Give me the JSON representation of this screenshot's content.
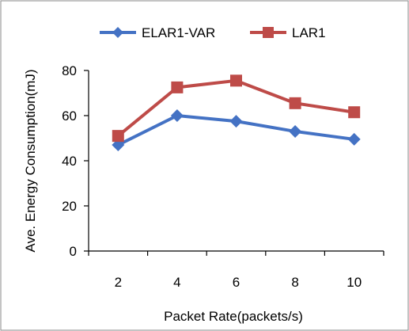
{
  "chart_data": {
    "type": "line",
    "title": "",
    "xlabel": "Packet Rate(packets/s)",
    "ylabel": "Ave. Energy Consumption(mJ)",
    "x": [
      2,
      4,
      6,
      8,
      10
    ],
    "x_tick_labels": [
      "2",
      "4",
      "6",
      "8",
      "10"
    ],
    "y_tick_labels": [
      "0",
      "20",
      "40",
      "60",
      "80"
    ],
    "ylim": [
      0,
      80
    ],
    "grid": false,
    "legend_position": "top",
    "series": [
      {
        "name": "ELAR1-VAR",
        "values": [
          47,
          60,
          57.5,
          53,
          49.5
        ],
        "color": "#4472C4",
        "marker": "diamond"
      },
      {
        "name": "LAR1",
        "values": [
          51,
          72.5,
          75.5,
          65.5,
          61.5
        ],
        "color": "#BE4B48",
        "marker": "square"
      }
    ]
  }
}
